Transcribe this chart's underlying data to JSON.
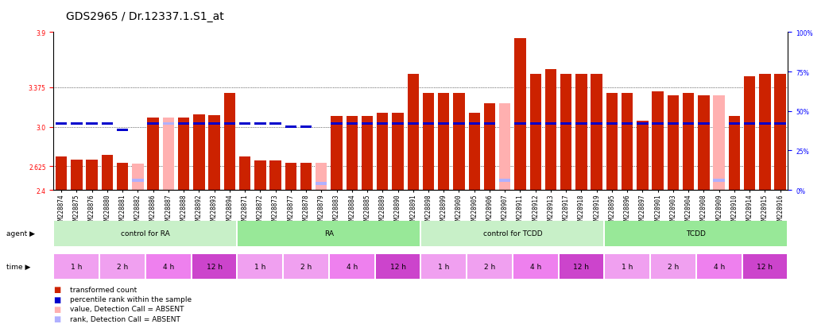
{
  "title": "GDS2965 / Dr.12337.1.S1_at",
  "samples": [
    "GSM228874",
    "GSM228875",
    "GSM228876",
    "GSM228880",
    "GSM228881",
    "GSM228882",
    "GSM228886",
    "GSM228887",
    "GSM228888",
    "GSM228892",
    "GSM228893",
    "GSM228894",
    "GSM228871",
    "GSM228872",
    "GSM228873",
    "GSM228877",
    "GSM228878",
    "GSM228879",
    "GSM228883",
    "GSM228884",
    "GSM228885",
    "GSM228889",
    "GSM228890",
    "GSM228891",
    "GSM228898",
    "GSM228899",
    "GSM228900",
    "GSM228905",
    "GSM228906",
    "GSM228907",
    "GSM228911",
    "GSM228912",
    "GSM228913",
    "GSM228917",
    "GSM228918",
    "GSM228919",
    "GSM228895",
    "GSM228896",
    "GSM228897",
    "GSM228901",
    "GSM228903",
    "GSM228904",
    "GSM228908",
    "GSM228909",
    "GSM228910",
    "GSM228914",
    "GSM228915",
    "GSM228916"
  ],
  "values": [
    2.72,
    2.69,
    2.69,
    2.73,
    2.66,
    2.65,
    3.09,
    3.09,
    3.09,
    3.12,
    3.11,
    3.32,
    2.72,
    2.68,
    2.68,
    2.66,
    2.66,
    2.66,
    3.1,
    3.1,
    3.1,
    3.13,
    3.13,
    3.5,
    3.32,
    3.32,
    3.32,
    3.13,
    3.22,
    3.22,
    3.84,
    3.5,
    3.55,
    3.5,
    3.5,
    3.5,
    3.32,
    3.32,
    3.06,
    3.34,
    3.3,
    3.32,
    3.3,
    3.3,
    3.1,
    3.48,
    3.5,
    3.5
  ],
  "percentile_ranks": [
    42,
    42,
    42,
    42,
    38,
    6,
    42,
    42,
    42,
    42,
    42,
    42,
    42,
    42,
    42,
    40,
    40,
    4,
    42,
    42,
    42,
    42,
    42,
    42,
    42,
    42,
    42,
    42,
    42,
    6,
    42,
    42,
    42,
    42,
    42,
    42,
    42,
    42,
    42,
    42,
    42,
    42,
    42,
    6,
    42,
    42,
    42,
    42
  ],
  "absent": [
    false,
    false,
    false,
    false,
    false,
    true,
    false,
    true,
    false,
    false,
    false,
    false,
    false,
    false,
    false,
    false,
    false,
    true,
    false,
    false,
    false,
    false,
    false,
    false,
    false,
    false,
    false,
    false,
    false,
    true,
    false,
    false,
    false,
    false,
    false,
    false,
    false,
    false,
    false,
    false,
    false,
    false,
    false,
    true,
    false,
    false,
    false,
    false
  ],
  "agent_groups": [
    {
      "label": "control for RA",
      "start": 0,
      "end": 12,
      "color": "#c8f0c8"
    },
    {
      "label": "RA",
      "start": 12,
      "end": 24,
      "color": "#98e898"
    },
    {
      "label": "control for TCDD",
      "start": 24,
      "end": 36,
      "color": "#c8f0c8"
    },
    {
      "label": "TCDD",
      "start": 36,
      "end": 48,
      "color": "#98e898"
    }
  ],
  "time_groups": [
    {
      "label": "1 h",
      "start": 0,
      "end": 3,
      "color": "#f0a0f0"
    },
    {
      "label": "2 h",
      "start": 3,
      "end": 6,
      "color": "#f0a0f0"
    },
    {
      "label": "4 h",
      "start": 6,
      "end": 9,
      "color": "#ee80ee"
    },
    {
      "label": "12 h",
      "start": 9,
      "end": 12,
      "color": "#cc44cc"
    },
    {
      "label": "1 h",
      "start": 12,
      "end": 15,
      "color": "#f0a0f0"
    },
    {
      "label": "2 h",
      "start": 15,
      "end": 18,
      "color": "#f0a0f0"
    },
    {
      "label": "4 h",
      "start": 18,
      "end": 21,
      "color": "#ee80ee"
    },
    {
      "label": "12 h",
      "start": 21,
      "end": 24,
      "color": "#cc44cc"
    },
    {
      "label": "1 h",
      "start": 24,
      "end": 27,
      "color": "#f0a0f0"
    },
    {
      "label": "2 h",
      "start": 27,
      "end": 30,
      "color": "#f0a0f0"
    },
    {
      "label": "4 h",
      "start": 30,
      "end": 33,
      "color": "#ee80ee"
    },
    {
      "label": "12 h",
      "start": 33,
      "end": 36,
      "color": "#cc44cc"
    },
    {
      "label": "1 h",
      "start": 36,
      "end": 39,
      "color": "#f0a0f0"
    },
    {
      "label": "2 h",
      "start": 39,
      "end": 42,
      "color": "#f0a0f0"
    },
    {
      "label": "4 h",
      "start": 42,
      "end": 45,
      "color": "#ee80ee"
    },
    {
      "label": "12 h",
      "start": 45,
      "end": 48,
      "color": "#cc44cc"
    }
  ],
  "ymin": 2.4,
  "ymax": 3.9,
  "yticks": [
    2.4,
    2.625,
    3.0,
    3.375,
    3.9
  ],
  "right_yticks": [
    0,
    25,
    50,
    75,
    100
  ],
  "bar_color": "#cc2200",
  "absent_bar_color": "#ffb0b0",
  "rank_color": "#0000cc",
  "absent_rank_color": "#b0b0ff",
  "bar_width": 0.75,
  "title_fontsize": 10,
  "tick_fontsize": 5.5,
  "label_fontsize": 7
}
